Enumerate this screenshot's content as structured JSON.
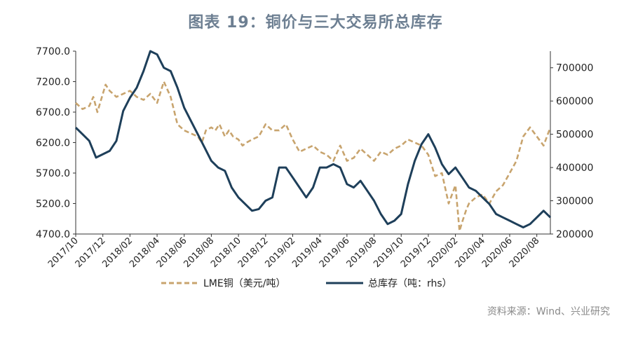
{
  "title": "图表 19：铜价与三大交易所总库存",
  "source": "资料来源：Wind、兴业研究",
  "colors": {
    "copper": "#c8a46e",
    "inventory": "#1e3f5a",
    "axis": "#333333"
  },
  "chart_data": {
    "type": "line",
    "title": "图表 19：铜价与三大交易所总库存",
    "xlabel": "",
    "x_tick_labels": [
      "2017/10",
      "2017/12",
      "2018/02",
      "2018/04",
      "2018/06",
      "2018/08",
      "2018/10",
      "2018/12",
      "2019/02",
      "2019/04",
      "2019/06",
      "2019/08",
      "2019/10",
      "2019/12",
      "2020/02",
      "2020/04",
      "2020/06",
      "2020/08"
    ],
    "y_left": {
      "ylim": [
        4700,
        7700
      ],
      "ticks": [
        "4700.0",
        "5200.0",
        "5700.0",
        "6200.0",
        "6700.0",
        "7200.0",
        "7700.0"
      ]
    },
    "y_right": {
      "ylim": [
        200000,
        750000
      ],
      "ticks": [
        "200000",
        "300000",
        "400000",
        "500000",
        "600000",
        "700000"
      ]
    },
    "x_range": [
      0,
      35
    ],
    "legend_position": "bottom",
    "series": [
      {
        "name": "LME铜（美元/吨）",
        "axis": "left",
        "style": "dashed",
        "color": "#c8a46e",
        "x": [
          0,
          0.5,
          1,
          1.3,
          1.6,
          2,
          2.2,
          2.5,
          3,
          3.5,
          4,
          4.5,
          5,
          5.5,
          6,
          6.5,
          7,
          7.5,
          8,
          8.5,
          9,
          9.3,
          9.6,
          10,
          10.3,
          10.6,
          11,
          11.3,
          11.6,
          12,
          12.3,
          12.6,
          13,
          13.5,
          14,
          14.5,
          15,
          15.5,
          16,
          16.5,
          17,
          17.5,
          18,
          18.5,
          19,
          19.5,
          20,
          20.5,
          21,
          21.5,
          22,
          22.5,
          23,
          23.5,
          24,
          24.5,
          25,
          25.5,
          26,
          26.5,
          27,
          27.5,
          28,
          28.3,
          28.5,
          28.8,
          29,
          29.5,
          30,
          30.5,
          31,
          31.5,
          32,
          32.5,
          33,
          33.5,
          34,
          34.5,
          35
        ],
        "y": [
          6850,
          6750,
          6800,
          6950,
          6700,
          7000,
          7150,
          7050,
          6950,
          7000,
          7050,
          6950,
          6900,
          7000,
          6850,
          7200,
          6950,
          6500,
          6400,
          6350,
          6300,
          6200,
          6400,
          6450,
          6400,
          6500,
          6300,
          6400,
          6300,
          6250,
          6150,
          6200,
          6250,
          6300,
          6500,
          6400,
          6400,
          6500,
          6250,
          6050,
          6100,
          6150,
          6050,
          6000,
          5900,
          6150,
          5900,
          5950,
          6100,
          6000,
          5900,
          6050,
          6000,
          6100,
          6150,
          6250,
          6200,
          6150,
          6000,
          5650,
          5700,
          5200,
          5500,
          4750,
          4900,
          5100,
          5200,
          5300,
          5350,
          5200,
          5400,
          5500,
          5700,
          5900,
          6300,
          6450,
          6300,
          6150,
          6450
        ]
      },
      {
        "name": "总库存（吨：rhs）",
        "axis": "right",
        "style": "solid",
        "color": "#1e3f5a",
        "x": [
          0,
          0.5,
          1,
          1.5,
          2,
          2.5,
          3,
          3.5,
          4,
          4.5,
          5,
          5.5,
          6,
          6.5,
          7,
          7.5,
          8,
          8.5,
          9,
          9.5,
          10,
          10.5,
          11,
          11.5,
          12,
          12.5,
          13,
          13.5,
          14,
          14.5,
          15,
          15.5,
          16,
          16.5,
          17,
          17.5,
          18,
          18.5,
          19,
          19.5,
          20,
          20.5,
          21,
          21.5,
          22,
          22.5,
          23,
          23.5,
          24,
          24.5,
          25,
          25.5,
          26,
          26.5,
          27,
          27.5,
          28,
          28.5,
          29,
          29.5,
          30,
          30.5,
          31,
          31.5,
          32,
          32.5,
          33,
          33.5,
          34,
          34.5,
          35
        ],
        "y": [
          520000,
          500000,
          480000,
          430000,
          440000,
          450000,
          480000,
          570000,
          610000,
          640000,
          690000,
          750000,
          740000,
          700000,
          690000,
          640000,
          580000,
          540000,
          500000,
          460000,
          420000,
          400000,
          390000,
          340000,
          310000,
          290000,
          270000,
          275000,
          300000,
          310000,
          400000,
          400000,
          370000,
          340000,
          310000,
          340000,
          400000,
          400000,
          410000,
          400000,
          350000,
          340000,
          360000,
          330000,
          300000,
          260000,
          230000,
          240000,
          260000,
          350000,
          420000,
          470000,
          500000,
          460000,
          410000,
          380000,
          400000,
          370000,
          340000,
          330000,
          310000,
          290000,
          260000,
          250000,
          240000,
          230000,
          220000,
          230000,
          250000,
          270000,
          250000
        ]
      }
    ]
  }
}
